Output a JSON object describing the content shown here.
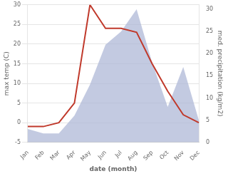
{
  "chart_data": {
    "type": "line",
    "xlabel": "date (month)",
    "ylabel": "max temp (C)",
    "y2label": "med. precipitation (kg/m2)",
    "categories": [
      "Jan",
      "Feb",
      "Mar",
      "Apr",
      "May",
      "Jun",
      "Jul",
      "Aug",
      "Sep",
      "Oct",
      "Nov",
      "Dec"
    ],
    "series": [
      {
        "type": "area",
        "color": "#aab4d4",
        "axis": "y2",
        "values": [
          3,
          2,
          2,
          6,
          13,
          22,
          25,
          30,
          18,
          8,
          17,
          5
        ]
      },
      {
        "type": "line",
        "color": "#c0392b",
        "values": [
          -1,
          -1,
          0,
          5,
          30,
          24,
          24,
          23,
          15,
          8,
          2,
          0
        ]
      }
    ],
    "ylim": [
      -5,
      30
    ],
    "yticks": [
      -5,
      0,
      5,
      10,
      15,
      20,
      25,
      30
    ],
    "y2lim": [
      0,
      31
    ],
    "y2ticks": [
      0,
      5,
      10,
      15,
      20,
      25,
      30
    ],
    "grid": true
  }
}
